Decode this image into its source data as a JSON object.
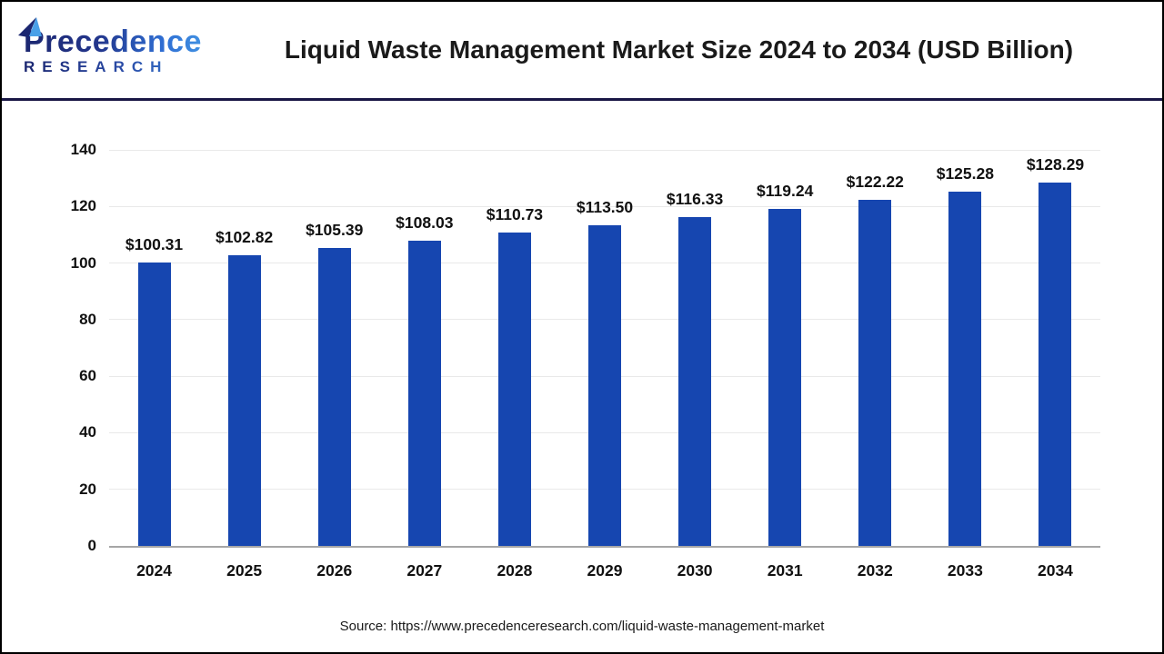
{
  "header": {
    "logo": {
      "name": "Precedence",
      "subname": "RESEARCH"
    },
    "title": "Liquid Waste Management Market Size 2024 to 2034 (USD Billion)"
  },
  "chart_data": {
    "type": "bar",
    "title": "Liquid Waste Management Market Size 2024 to 2034 (USD Billion)",
    "categories": [
      "2024",
      "2025",
      "2026",
      "2027",
      "2028",
      "2029",
      "2030",
      "2031",
      "2032",
      "2033",
      "2034"
    ],
    "values": [
      100.31,
      102.82,
      105.39,
      108.03,
      110.73,
      113.5,
      116.33,
      119.24,
      122.22,
      125.28,
      128.29
    ],
    "data_labels": [
      "$100.31",
      "$102.82",
      "$105.39",
      "$108.03",
      "$110.73",
      "$113.50",
      "$116.33",
      "$119.24",
      "$122.22",
      "$125.28",
      "$128.29"
    ],
    "ylabel": "",
    "xlabel": "",
    "ylim": [
      0,
      140
    ],
    "yticks": [
      0,
      20,
      40,
      60,
      80,
      100,
      120,
      140
    ],
    "grid": true,
    "legend": "none",
    "bar_color": "#1646b0"
  },
  "footer": {
    "source": "Source: https://www.precedenceresearch.com/liquid-waste-management-market"
  },
  "colors": {
    "bar": "#1646b0",
    "header_separator": "#191645",
    "baseline": "#a6a6a6",
    "gridline": "#e9e9e9",
    "title_text": "#1a1a1a",
    "logo_dark": "#1b2670",
    "logo_light": "#49a0e8"
  }
}
